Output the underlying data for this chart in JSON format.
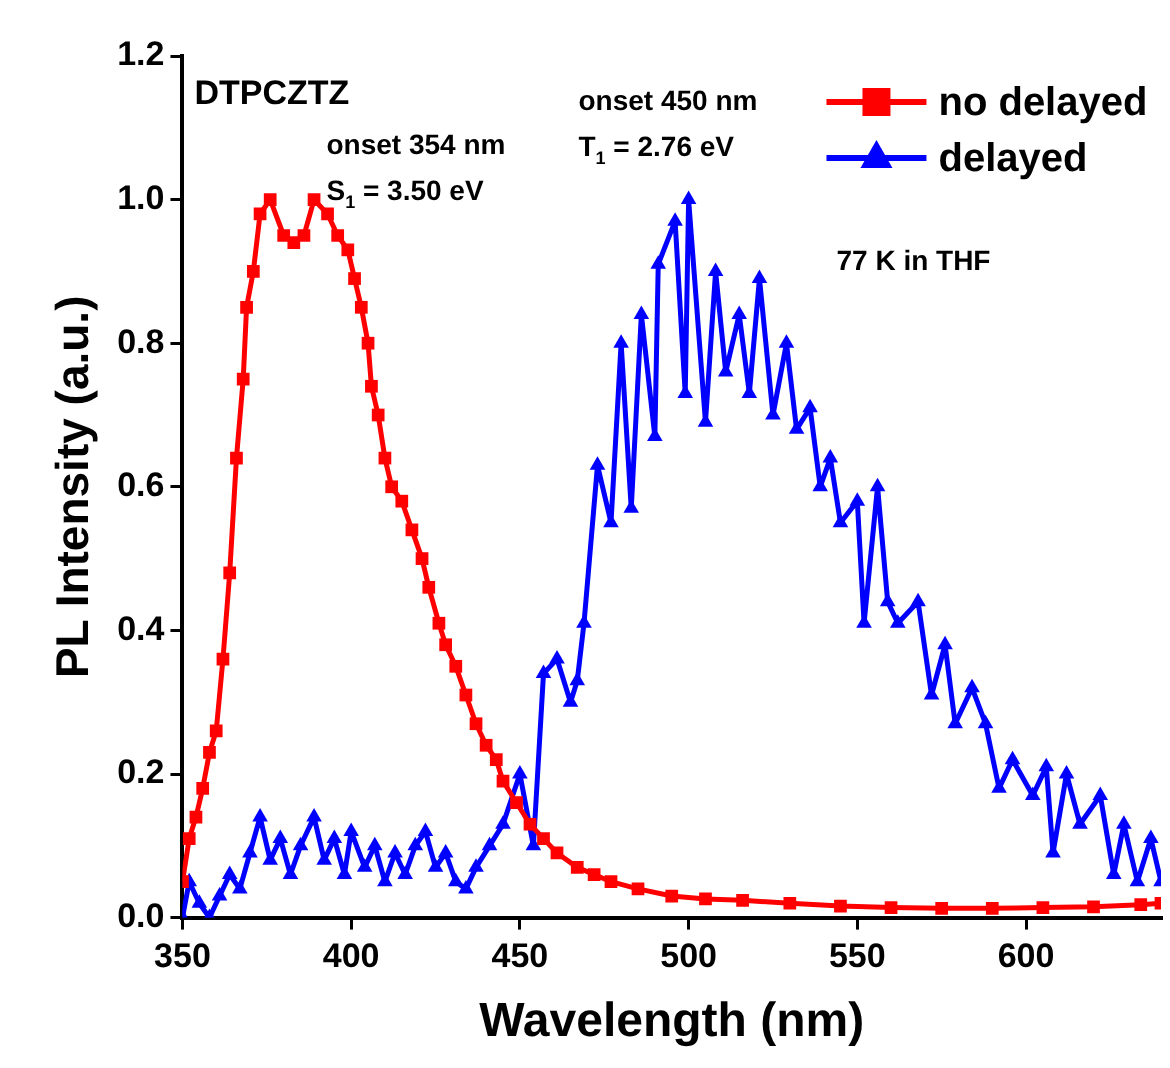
{
  "chart_data": {
    "type": "line",
    "title": "DTPCZTZ",
    "xlabel": "Wavelength (nm)",
    "ylabel": "PL Intensity (a.u.)",
    "annotations": [
      "onset 354 nm\nS$_{1}$ = 3.50 eV",
      "onset 450 nm\nT$_{1}$ = 2.76 eV",
      "77 K in THF"
    ],
    "xlim": [
      350,
      640
    ],
    "xticks": [
      350,
      400,
      450,
      500,
      550,
      600
    ],
    "ylim": [
      0,
      1.2
    ],
    "yticks": [
      {
        "value": 0,
        "label": "0.0"
      },
      {
        "value": 0.2,
        "label": "0.2"
      },
      {
        "value": 0.4,
        "label": "0.4"
      },
      {
        "value": 0.6,
        "label": "0.6"
      },
      {
        "value": 0.8,
        "label": "0.8"
      },
      {
        "value": 1,
        "label": "1.0"
      },
      {
        "value": 1.2,
        "label": "1.2"
      }
    ],
    "grid": false,
    "legend": "top right",
    "line_style": "solid",
    "series": [
      {
        "name": "no delayed",
        "color": "#ff0000",
        "marker": "square",
        "x": [
          350,
          352,
          354,
          356,
          358,
          360,
          362,
          364,
          366,
          368,
          369,
          371,
          373,
          376,
          380,
          383,
          386,
          389,
          393,
          396,
          399,
          401,
          403,
          405,
          406,
          408,
          410,
          412,
          415,
          418,
          421,
          423,
          426,
          428,
          431,
          434,
          437,
          440,
          443,
          445,
          449,
          453,
          457,
          461,
          467,
          472,
          477,
          485,
          495,
          505,
          516,
          530,
          545,
          560,
          575,
          590,
          605,
          620,
          634,
          640
        ],
        "values": [
          0.05,
          0.11,
          0.14,
          0.18,
          0.23,
          0.26,
          0.36,
          0.48,
          0.64,
          0.75,
          0.85,
          0.9,
          0.98,
          1.0,
          0.95,
          0.94,
          0.95,
          1.0,
          0.98,
          0.95,
          0.93,
          0.89,
          0.85,
          0.8,
          0.74,
          0.7,
          0.64,
          0.6,
          0.58,
          0.54,
          0.5,
          0.46,
          0.41,
          0.38,
          0.35,
          0.31,
          0.27,
          0.24,
          0.22,
          0.19,
          0.16,
          0.13,
          0.11,
          0.09,
          0.07,
          0.06,
          0.05,
          0.04,
          0.03,
          0.026,
          0.024,
          0.02,
          0.016,
          0.014,
          0.013,
          0.013,
          0.014,
          0.015,
          0.018,
          0.02
        ]
      },
      {
        "name": "delayed",
        "color": "#0000ff",
        "marker": "triangle",
        "x": [
          350,
          352,
          355,
          358,
          361,
          364,
          367,
          370,
          373,
          376,
          379,
          382,
          385,
          389,
          392,
          395,
          398,
          400,
          404,
          407,
          410,
          413,
          416,
          419,
          422,
          425,
          428,
          431,
          434,
          437,
          441,
          445,
          450,
          454,
          457,
          461,
          465,
          467,
          469,
          473,
          477,
          480,
          483,
          486,
          490,
          491,
          496,
          499,
          500,
          505,
          508,
          511,
          515,
          518,
          521,
          525,
          529,
          532,
          536,
          539,
          542,
          545,
          550,
          552,
          556,
          559,
          562,
          568,
          572,
          576,
          579,
          584,
          588,
          592,
          596,
          602,
          606,
          608,
          612,
          616,
          622,
          626,
          629,
          633,
          637,
          640
        ],
        "values": [
          0.0,
          0.05,
          0.02,
          0.0,
          0.03,
          0.06,
          0.04,
          0.09,
          0.14,
          0.08,
          0.11,
          0.06,
          0.1,
          0.14,
          0.08,
          0.11,
          0.06,
          0.12,
          0.07,
          0.1,
          0.05,
          0.09,
          0.06,
          0.1,
          0.12,
          0.07,
          0.09,
          0.05,
          0.04,
          0.07,
          0.1,
          0.13,
          0.2,
          0.1,
          0.34,
          0.36,
          0.3,
          0.33,
          0.41,
          0.63,
          0.55,
          0.8,
          0.57,
          0.84,
          0.67,
          0.91,
          0.97,
          0.73,
          1.0,
          0.69,
          0.9,
          0.76,
          0.84,
          0.73,
          0.89,
          0.7,
          0.8,
          0.68,
          0.71,
          0.6,
          0.64,
          0.55,
          0.58,
          0.41,
          0.6,
          0.44,
          0.41,
          0.44,
          0.31,
          0.38,
          0.27,
          0.32,
          0.27,
          0.18,
          0.22,
          0.17,
          0.21,
          0.09,
          0.2,
          0.13,
          0.17,
          0.06,
          0.13,
          0.05,
          0.11,
          0.05
        ]
      }
    ]
  }
}
